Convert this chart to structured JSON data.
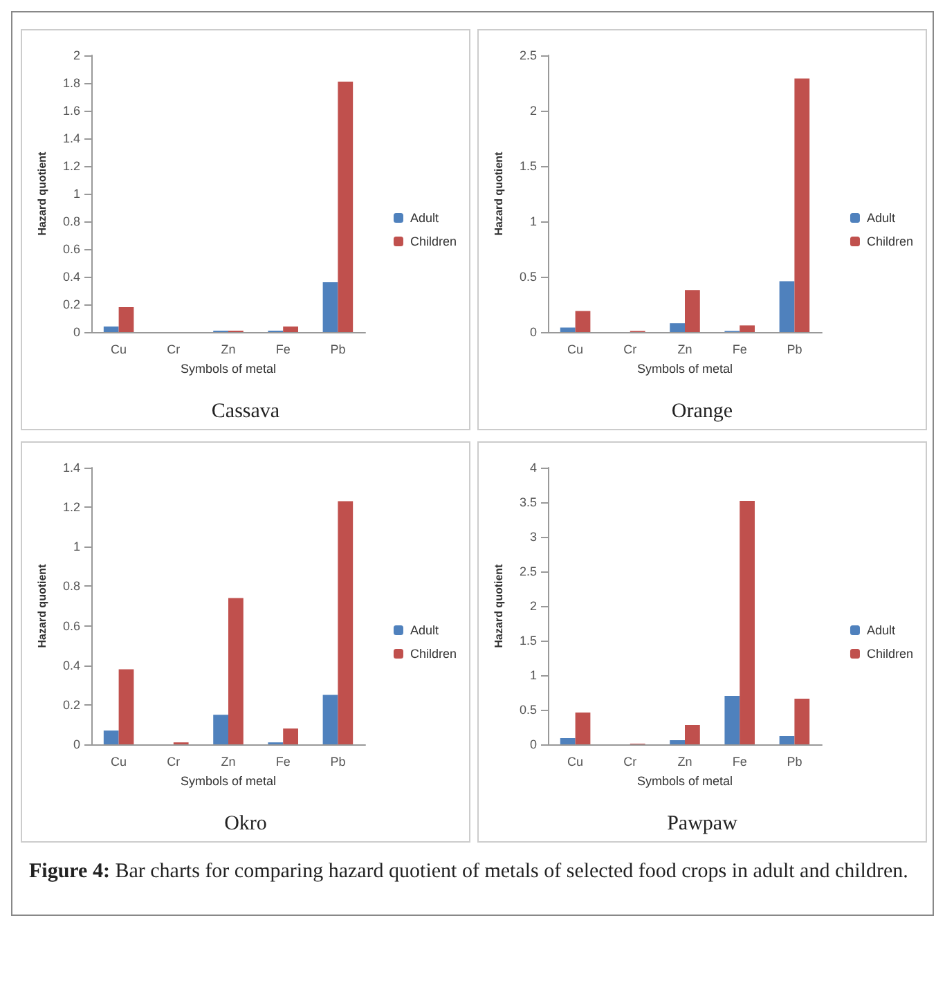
{
  "chart_data": [
    {
      "type": "bar",
      "title": "Cassava",
      "xlabel": "Symbols of metal",
      "ylabel": "Hazard quotient",
      "categories": [
        "Cu",
        "Cr",
        "Zn",
        "Fe",
        "Pb"
      ],
      "series": [
        {
          "name": "Adult",
          "color": "#4f81bd",
          "values": [
            0.04,
            0,
            0.01,
            0.01,
            0.36
          ]
        },
        {
          "name": "Children",
          "color": "#c0504d",
          "values": [
            0.18,
            0,
            0.01,
            0.04,
            1.81
          ]
        }
      ],
      "ylim": [
        0,
        2
      ],
      "yticks": [
        0,
        0.2,
        0.4,
        0.6,
        0.8,
        1,
        1.2,
        1.4,
        1.6,
        1.8,
        2
      ],
      "grid": false,
      "legend": "right"
    },
    {
      "type": "bar",
      "title": "Orange",
      "xlabel": "Symbols of metal",
      "ylabel": "Hazard quotient",
      "categories": [
        "Cu",
        "Cr",
        "Zn",
        "Fe",
        "Pb"
      ],
      "series": [
        {
          "name": "Adult",
          "color": "#4f81bd",
          "values": [
            0.04,
            0,
            0.08,
            0.01,
            0.46
          ]
        },
        {
          "name": "Children",
          "color": "#c0504d",
          "values": [
            0.19,
            0.01,
            0.38,
            0.06,
            2.29
          ]
        }
      ],
      "ylim": [
        0,
        2.5
      ],
      "yticks": [
        0,
        0.5,
        1,
        1.5,
        2,
        2.5
      ],
      "grid": false,
      "legend": "right"
    },
    {
      "type": "bar",
      "title": "Okro",
      "xlabel": "Symbols of metal",
      "ylabel": "Hazard quotient",
      "categories": [
        "Cu",
        "Cr",
        "Zn",
        "Fe",
        "Pb"
      ],
      "series": [
        {
          "name": "Adult",
          "color": "#4f81bd",
          "values": [
            0.07,
            0,
            0.15,
            0.01,
            0.25
          ]
        },
        {
          "name": "Children",
          "color": "#c0504d",
          "values": [
            0.38,
            0.01,
            0.74,
            0.08,
            1.23
          ]
        }
      ],
      "ylim": [
        0,
        1.4
      ],
      "yticks": [
        0,
        0.2,
        0.4,
        0.6,
        0.8,
        1,
        1.2,
        1.4
      ],
      "grid": false,
      "legend": "right"
    },
    {
      "type": "bar",
      "title": "Pawpaw",
      "xlabel": "Symbols of metal",
      "ylabel": "Hazard quotient",
      "categories": [
        "Cu",
        "Cr",
        "Zn",
        "Fe",
        "Pb"
      ],
      "series": [
        {
          "name": "Adult",
          "color": "#4f81bd",
          "values": [
            0.09,
            0,
            0.06,
            0.7,
            0.12
          ]
        },
        {
          "name": "Children",
          "color": "#c0504d",
          "values": [
            0.46,
            0.01,
            0.28,
            3.52,
            0.66
          ]
        }
      ],
      "ylim": [
        0,
        4
      ],
      "yticks": [
        0,
        0.5,
        1,
        1.5,
        2,
        2.5,
        3,
        3.5,
        4
      ],
      "grid": false,
      "legend": "right",
      "annotations": [
        "Figure 4: Bar charts for comparing hazard quotient of metals of selected food crops in adult and children."
      ]
    }
  ]
}
